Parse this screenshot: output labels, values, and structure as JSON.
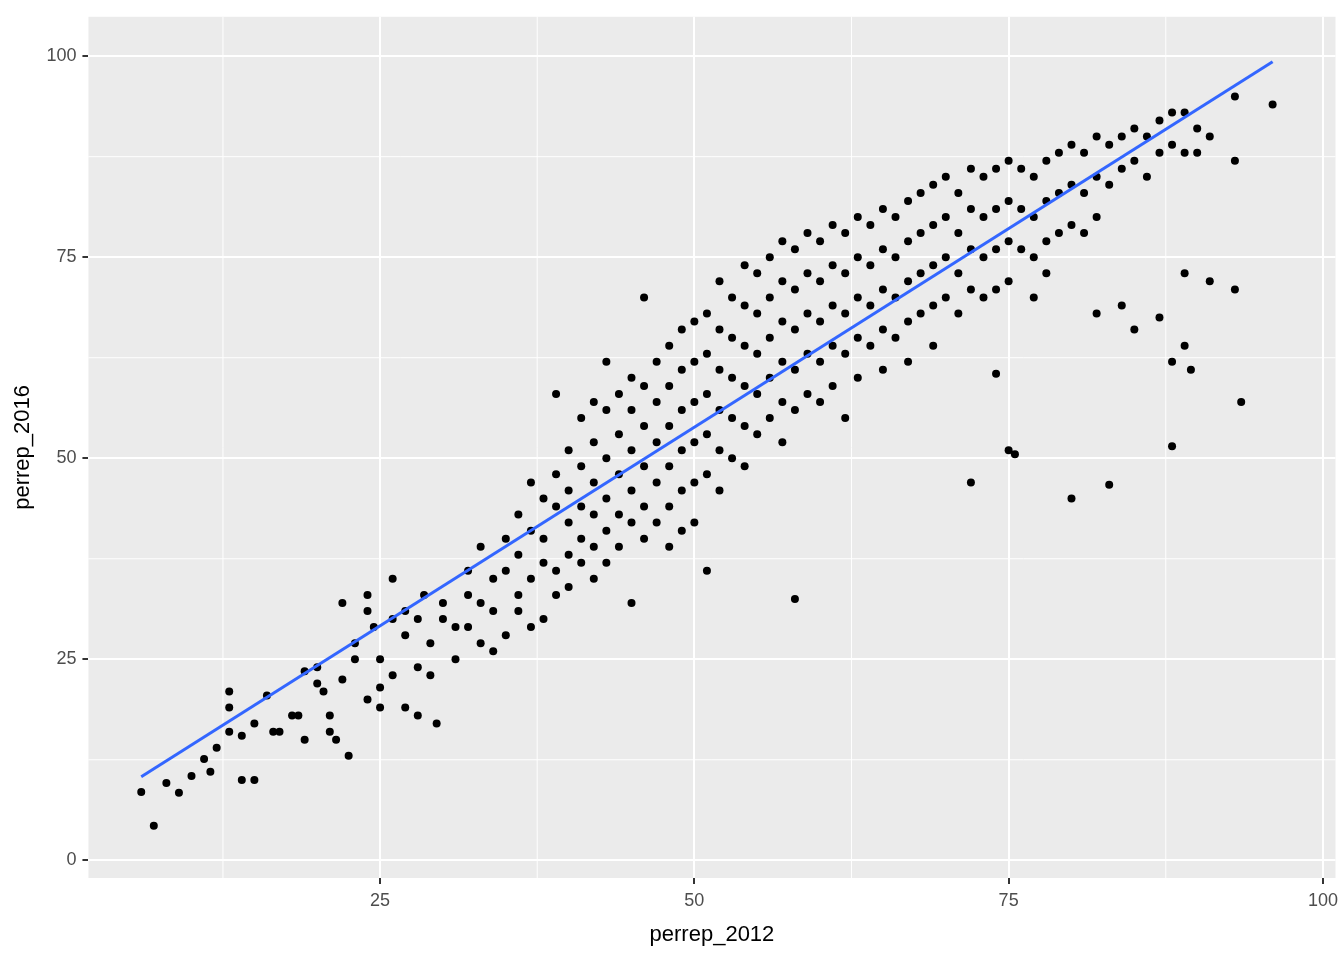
{
  "chart_data": {
    "type": "scatter",
    "x_label": "perrep_2012",
    "y_label": "perrep_2016",
    "xlim": [
      1.8,
      101
    ],
    "ylim": [
      -2.2,
      104.9
    ],
    "xticks": [
      25,
      50,
      75,
      100
    ],
    "yticks": [
      0,
      25,
      50,
      75,
      100
    ],
    "grid": true,
    "series": [
      {
        "type": "scatter",
        "color": "#000000",
        "marker": "circle",
        "x": [
          6,
          7,
          8,
          9,
          10,
          11,
          12,
          11.5,
          13,
          13,
          13,
          14,
          14,
          15,
          15,
          16,
          16.5,
          17,
          18,
          18.5,
          19,
          19,
          20,
          20,
          20.5,
          21,
          21,
          21.5,
          22,
          22.5,
          22,
          23,
          23,
          24,
          24,
          24,
          24.5,
          25,
          25,
          25,
          26,
          26,
          26,
          27,
          27,
          27,
          28,
          28,
          28,
          28.5,
          29,
          29,
          29.5,
          30,
          30,
          31,
          31,
          32,
          32,
          32,
          33,
          33,
          33,
          34,
          34,
          34,
          35,
          35,
          35,
          36,
          36,
          36,
          36,
          37,
          37,
          37,
          37,
          38,
          38,
          38,
          38,
          39,
          39,
          39,
          39,
          39,
          40,
          40,
          40,
          40,
          40,
          41,
          41,
          41,
          41,
          41,
          42,
          42,
          42,
          42,
          42,
          42,
          43,
          43,
          43,
          43,
          43,
          43,
          44,
          44,
          44,
          44,
          44,
          45,
          45,
          45,
          45,
          45,
          45,
          46,
          46,
          46,
          46,
          46,
          46,
          47,
          47,
          47,
          47,
          47,
          48,
          48,
          48,
          48,
          48,
          48,
          49,
          49,
          49,
          49,
          49,
          49,
          50,
          50,
          50,
          50,
          50,
          50,
          51,
          51,
          51,
          51,
          51,
          51,
          52,
          52,
          52,
          52,
          52,
          52,
          53,
          53,
          53,
          53,
          53,
          54,
          54,
          54,
          54,
          54,
          54,
          55,
          55,
          55,
          55,
          55,
          56,
          56,
          56,
          56,
          56,
          57,
          57,
          57,
          57,
          57,
          57,
          58,
          58,
          58,
          58,
          58,
          58,
          59,
          59,
          59,
          59,
          59,
          60,
          60,
          60,
          60,
          60,
          61,
          61,
          61,
          61,
          61,
          62,
          62,
          62,
          62,
          62,
          63,
          63,
          63,
          63,
          63,
          64,
          64,
          64,
          64,
          65,
          65,
          65,
          65,
          65,
          66,
          66,
          66,
          66,
          67,
          67,
          67,
          67,
          67,
          68,
          68,
          68,
          68,
          69,
          69,
          69,
          69,
          69,
          70,
          70,
          70,
          70,
          71,
          71,
          71,
          71,
          72,
          72,
          72,
          72,
          72,
          73,
          73,
          73,
          73,
          74,
          74,
          74,
          74,
          74,
          75,
          75,
          75,
          75,
          75,
          75.5,
          76,
          76,
          76,
          77,
          77,
          77,
          77,
          78,
          78,
          78,
          78,
          79,
          79,
          79,
          80,
          80,
          80,
          80,
          81,
          81,
          81,
          82,
          82,
          82,
          82,
          83,
          83,
          83,
          84,
          84,
          84,
          85,
          85,
          85,
          86,
          86,
          87,
          87,
          87,
          88,
          88,
          88,
          88,
          89,
          89,
          89,
          89,
          89.5,
          90,
          90,
          91,
          91,
          93,
          93,
          93,
          93.5,
          96
        ],
        "values": [
          8.5,
          4.3,
          9.6,
          8.4,
          10.5,
          12.6,
          14,
          11,
          21,
          19,
          16,
          10,
          15.5,
          10,
          17,
          20.5,
          16,
          16,
          18,
          18,
          23.5,
          15,
          24,
          22,
          21,
          18,
          16,
          15,
          22.5,
          13,
          32,
          25,
          27,
          33,
          31,
          20,
          29,
          25,
          21.5,
          19,
          35,
          30,
          23,
          31,
          28,
          19,
          24,
          30,
          18,
          33,
          27,
          23,
          17,
          32,
          30,
          25,
          29,
          33,
          36,
          29,
          27,
          32,
          39,
          31,
          35,
          26,
          40,
          36,
          28,
          33,
          43,
          38,
          31,
          47,
          41,
          35,
          29,
          45,
          40,
          37,
          30,
          58,
          48,
          44,
          36,
          33,
          51,
          46,
          42,
          38,
          34,
          55,
          49,
          44,
          40,
          37,
          57,
          52,
          47,
          43,
          39,
          35,
          62,
          56,
          50,
          45,
          41,
          37,
          58,
          53,
          48,
          43,
          39,
          60,
          56,
          51,
          46,
          42,
          32,
          70,
          59,
          54,
          49,
          44,
          40,
          62,
          57,
          52,
          47,
          42,
          64,
          59,
          54,
          49,
          44,
          39,
          66,
          61,
          56,
          51,
          46,
          41,
          67,
          62,
          57,
          52,
          47,
          42,
          68,
          63,
          58,
          53,
          48,
          36,
          72,
          66,
          61,
          56,
          51,
          46,
          70,
          65,
          60,
          55,
          50,
          74,
          69,
          64,
          59,
          54,
          49,
          73,
          68,
          63,
          58,
          53,
          75,
          70,
          65,
          60,
          55,
          77,
          72,
          67,
          62,
          57,
          52,
          76,
          71,
          66,
          61,
          56,
          32.5,
          78,
          73,
          68,
          63,
          58,
          77,
          72,
          67,
          62,
          57,
          79,
          74,
          69,
          64,
          59,
          78,
          73,
          68,
          63,
          55,
          80,
          75,
          70,
          65,
          60,
          79,
          74,
          69,
          64,
          81,
          76,
          71,
          66,
          61,
          80,
          75,
          70,
          65,
          82,
          77,
          72,
          67,
          62,
          83,
          78,
          73,
          68,
          84,
          79,
          74,
          69,
          64,
          85,
          80,
          75,
          70,
          83,
          78,
          73,
          68,
          86,
          81,
          76,
          71,
          47,
          85,
          80,
          75,
          70,
          86,
          81,
          76,
          71,
          60.5,
          87,
          82,
          77,
          72,
          51,
          50.5,
          86,
          81,
          76,
          85,
          80,
          75,
          70,
          87,
          82,
          77,
          73,
          88,
          83,
          78,
          89,
          84,
          79,
          45,
          88,
          83,
          78,
          90,
          85,
          80,
          68,
          89,
          84,
          46.7,
          90,
          86,
          69,
          91,
          87,
          66,
          90,
          85,
          92,
          88,
          67.5,
          93,
          89,
          62,
          51.5,
          93,
          88,
          73,
          64,
          61,
          91,
          88,
          90,
          72,
          95,
          87,
          71,
          57,
          94
        ]
      },
      {
        "type": "line",
        "color": "#3366FF",
        "x": [
          6,
          96
        ],
        "values": [
          10.4,
          99.3
        ]
      }
    ]
  }
}
